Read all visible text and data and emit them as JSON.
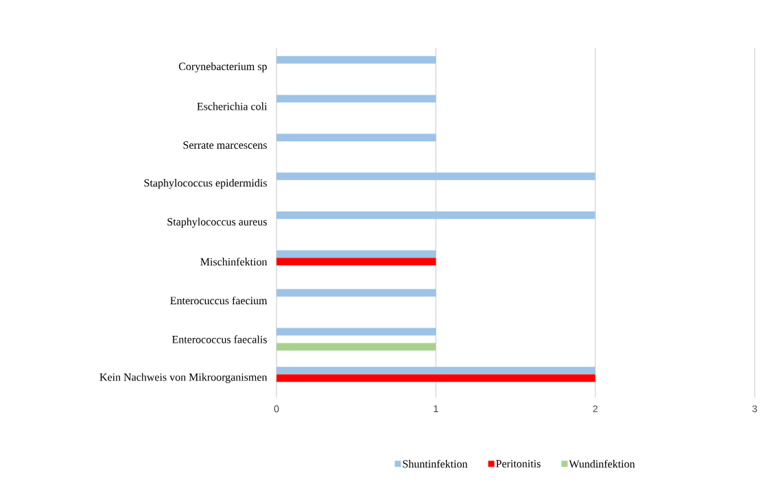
{
  "chart_data": {
    "type": "bar",
    "orientation": "horizontal",
    "categories": [
      "Corynebacterium sp",
      "Escherichia coli",
      "Serrate marcescens",
      "Staphylococcus epidermidis",
      "Staphylococcus aureus",
      "Mischinfektion",
      "Enterocuccus faecium",
      "Enterococcus faecalis",
      "Kein Nachweis von Mikroorganismen"
    ],
    "series": [
      {
        "name": "Shuntinfektion",
        "color": "#9dc3e6",
        "values": [
          1,
          1,
          1,
          2,
          2,
          1,
          1,
          1,
          2
        ]
      },
      {
        "name": "Peritonitis",
        "color": "#ff0000",
        "values": [
          null,
          null,
          null,
          null,
          null,
          1,
          null,
          null,
          2
        ]
      },
      {
        "name": "Wundinfektion",
        "color": "#a9d18e",
        "values": [
          null,
          null,
          null,
          null,
          null,
          null,
          null,
          1,
          null
        ]
      }
    ],
    "xlim": [
      0,
      3
    ],
    "xticks": [
      0,
      1,
      2,
      3
    ],
    "grid": "x",
    "legend": "bottom"
  }
}
